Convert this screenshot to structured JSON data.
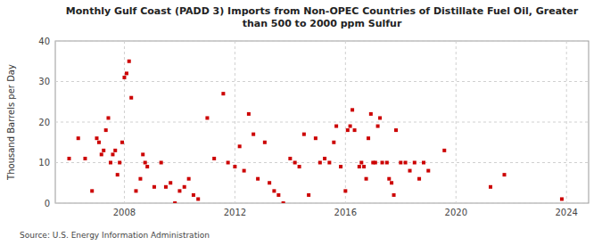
{
  "chart_data": {
    "type": "scatter",
    "title": "Monthly Gulf Coast (PADD 3) Imports from Non-OPEC Countries of Distillate Fuel Oil, Greater\nthan 500 to 2000 ppm Sulfur",
    "ylabel": "Thousand Barrels per Day",
    "source": "Source: U.S. Energy Information Administration",
    "color": "#cc0000",
    "marker": "square",
    "grid": true,
    "xlim": [
      2005.5,
      2024.8
    ],
    "ylim": [
      0,
      40
    ],
    "xticks": [
      2008,
      2012,
      2016,
      2020,
      2024
    ],
    "yticks": [
      0,
      10,
      20,
      30,
      40
    ],
    "x": [
      2006.0,
      2006.33,
      2006.58,
      2006.83,
      2007.0,
      2007.08,
      2007.17,
      2007.25,
      2007.33,
      2007.42,
      2007.5,
      2007.58,
      2007.67,
      2007.75,
      2007.83,
      2007.92,
      2008.0,
      2008.08,
      2008.17,
      2008.25,
      2008.42,
      2008.58,
      2008.67,
      2008.75,
      2008.83,
      2009.08,
      2009.33,
      2009.5,
      2009.67,
      2009.83,
      2010.0,
      2010.17,
      2010.33,
      2010.5,
      2010.67,
      2011.0,
      2011.25,
      2011.58,
      2011.75,
      2012.0,
      2012.17,
      2012.33,
      2012.5,
      2012.67,
      2012.83,
      2013.08,
      2013.25,
      2013.42,
      2013.58,
      2013.75,
      2014.0,
      2014.17,
      2014.33,
      2014.5,
      2014.67,
      2014.92,
      2015.08,
      2015.25,
      2015.42,
      2015.58,
      2015.67,
      2015.83,
      2016.0,
      2016.08,
      2016.17,
      2016.25,
      2016.33,
      2016.5,
      2016.58,
      2016.67,
      2016.75,
      2016.83,
      2016.92,
      2017.0,
      2017.08,
      2017.17,
      2017.25,
      2017.33,
      2017.5,
      2017.58,
      2017.67,
      2017.75,
      2017.83,
      2018.0,
      2018.17,
      2018.33,
      2018.5,
      2018.67,
      2018.83,
      2019.0,
      2019.58,
      2021.25,
      2021.75,
      2023.83
    ],
    "values": [
      11,
      16,
      11,
      3,
      16,
      15,
      12,
      13,
      18,
      21,
      10,
      12,
      13,
      7,
      10,
      15,
      31,
      32,
      35,
      26,
      3,
      6,
      12,
      10,
      9,
      4,
      10,
      4,
      5,
      0,
      3,
      4,
      6,
      2,
      1,
      21,
      11,
      27,
      10,
      9,
      14,
      8,
      22,
      17,
      6,
      15,
      5,
      3,
      2,
      0,
      11,
      10,
      9,
      17,
      2,
      16,
      10,
      11,
      10,
      15,
      19,
      9,
      3,
      18,
      19,
      23,
      18,
      9,
      10,
      9,
      6,
      16,
      22,
      10,
      10,
      19,
      21,
      10,
      10,
      6,
      5,
      2,
      18,
      10,
      10,
      8,
      10,
      6,
      10,
      8,
      13,
      4,
      7,
      1
    ]
  }
}
